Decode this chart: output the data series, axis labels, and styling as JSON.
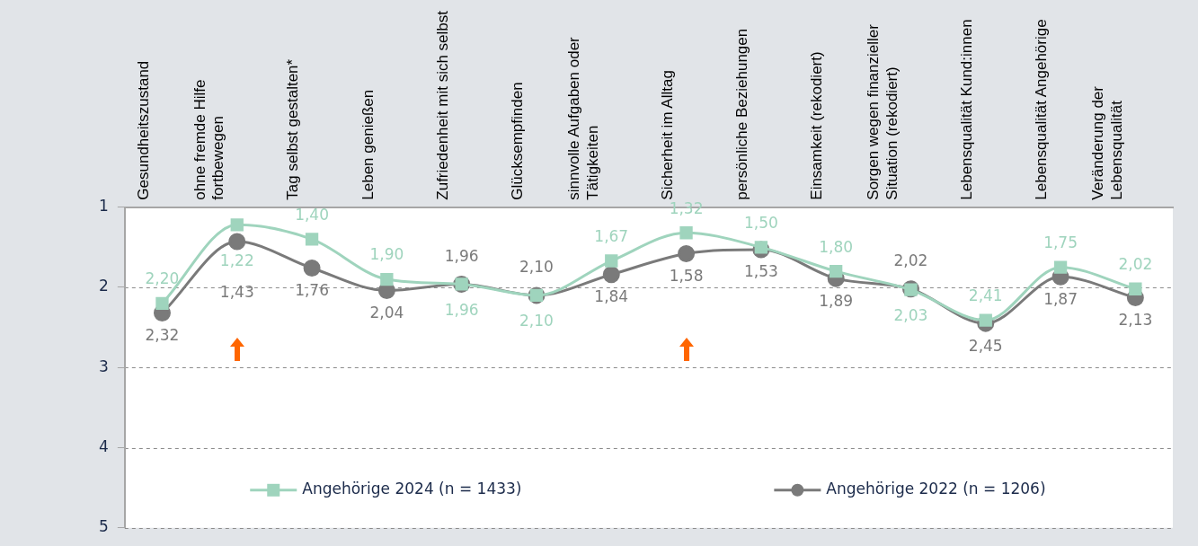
{
  "chart_data": {
    "type": "line",
    "categories": [
      "Gesundheitszustand",
      "ohne fremde Hilfe\nfortbewegen",
      "Tag selbst gestalten*",
      "Leben genießen",
      "Zufriedenheit mit sich selbst",
      "Glücksempfinden",
      "sinnvolle Aufgaben oder\nTätigkeiten",
      "Sicherheit im Alltag",
      "persönliche Beziehungen",
      "Einsamkeit (rekodiert)",
      "Sorgen wegen finanzieller\nSituation (rekodiert)",
      "Lebensqualität Kund:innen",
      "Lebensqualität Angehörige",
      "Veränderung der\nLebensqualität"
    ],
    "series": [
      {
        "name": "Angehörige 2024 (n = 1433)",
        "color": "#9fd4bd",
        "marker": "square",
        "values": [
          2.2,
          1.22,
          1.4,
          1.9,
          1.96,
          2.1,
          1.67,
          1.32,
          1.5,
          1.8,
          2.03,
          2.41,
          1.75,
          2.02
        ],
        "value_labels": [
          "2,20",
          "1,22",
          "1,40",
          "1,90",
          "1,96",
          "2,10",
          "1,67",
          "1,32",
          "1,50",
          "1,80",
          "2,03",
          "2,41",
          "1,75",
          "2,02"
        ]
      },
      {
        "name": "Angehörige 2022 (n = 1206)",
        "color": "#7a7a7a",
        "marker": "circle",
        "values": [
          2.32,
          1.43,
          1.76,
          2.04,
          1.96,
          2.1,
          1.84,
          1.58,
          1.53,
          1.89,
          2.02,
          2.45,
          1.87,
          2.13
        ],
        "value_labels": [
          "2,32",
          "1,43",
          "1,76",
          "2,04",
          "1,96",
          "2,10",
          "1,84",
          "1,58",
          "1,53",
          "1,89",
          "2,02",
          "2,45",
          "1,87",
          "2,13"
        ]
      }
    ],
    "ylim": [
      5,
      1
    ],
    "yticks": [
      1,
      2,
      3,
      4,
      5
    ],
    "grid": "y",
    "legend": "bottom",
    "line_style": "solid"
  }
}
